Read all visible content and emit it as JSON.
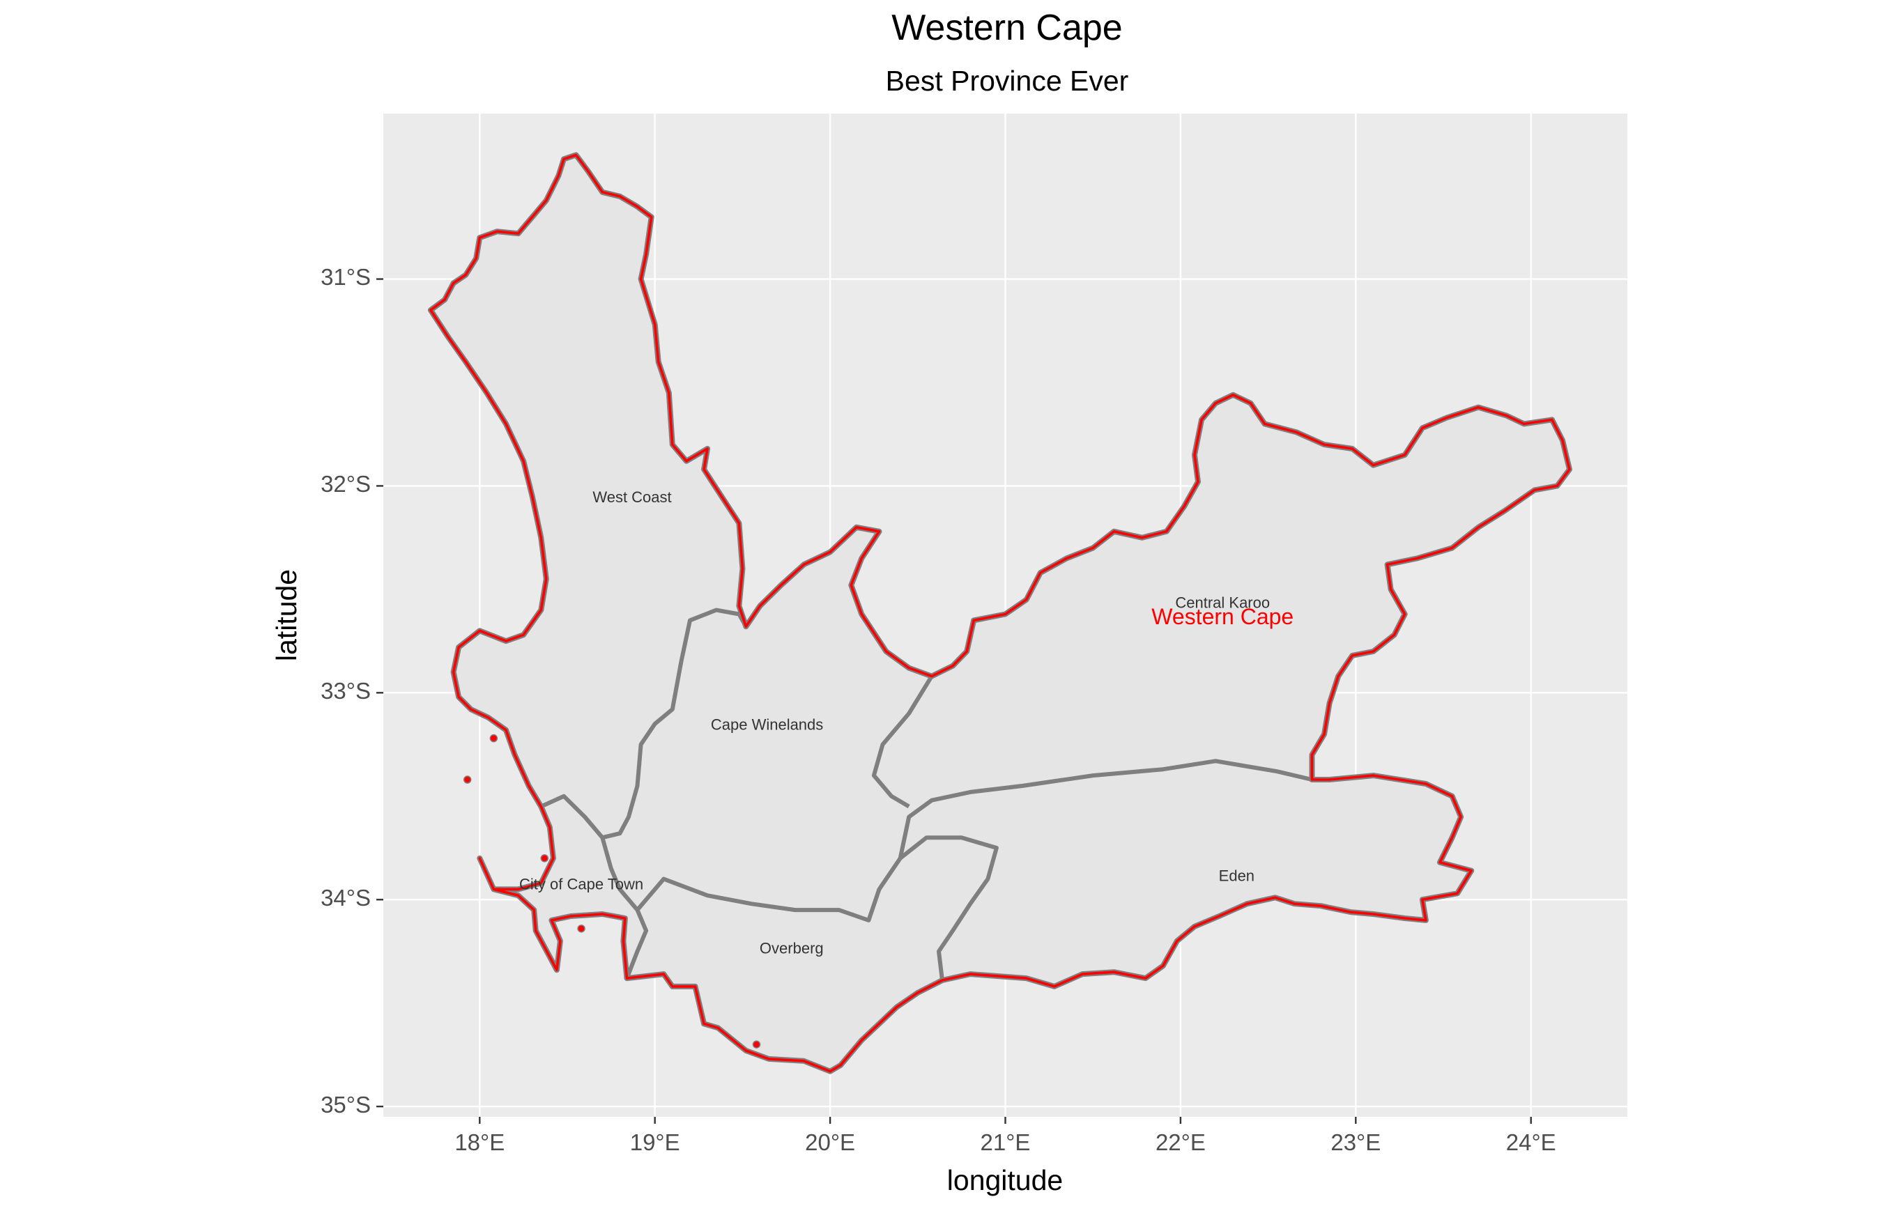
{
  "title": "Western Cape",
  "subtitle": "Best Province Ever",
  "x_axis": {
    "label": "longitude",
    "ticks": [
      {
        "value": 18,
        "label": "18°E"
      },
      {
        "value": 19,
        "label": "19°E"
      },
      {
        "value": 20,
        "label": "20°E"
      },
      {
        "value": 21,
        "label": "21°E"
      },
      {
        "value": 22,
        "label": "22°E"
      },
      {
        "value": 23,
        "label": "23°E"
      },
      {
        "value": 24,
        "label": "24°E"
      }
    ],
    "range": [
      17.45,
      24.55
    ]
  },
  "y_axis": {
    "label": "latitude",
    "ticks": [
      {
        "value": -31,
        "label": "31°S"
      },
      {
        "value": -32,
        "label": "32°S"
      },
      {
        "value": -33,
        "label": "33°S"
      },
      {
        "value": -34,
        "label": "34°S"
      },
      {
        "value": -35,
        "label": "35°S"
      }
    ],
    "range": [
      -35.05,
      -30.2
    ]
  },
  "colors": {
    "panel": "#ebebeb",
    "grid": "#ffffff",
    "fill": "#e5e5e5",
    "district_border": "#7f7f7f",
    "province_border": "#ff0000",
    "province_label": "#ff0000",
    "district_label": "#333333",
    "tick_label": "#4d4d4d",
    "tick_mark": "#333333",
    "title": "#000000"
  },
  "province_label": {
    "text": "Western Cape",
    "lon": 22.24,
    "lat": -32.64
  },
  "districts": [
    {
      "name": "West Coast",
      "lon": 18.87,
      "lat": -32.06
    },
    {
      "name": "Central Karoo",
      "lon": 22.24,
      "lat": -32.57
    },
    {
      "name": "Cape Winelands",
      "lon": 19.64,
      "lat": -33.16
    },
    {
      "name": "City of Cape Town",
      "lon": 18.58,
      "lat": -33.93
    },
    {
      "name": "Eden",
      "lon": 22.32,
      "lat": -33.89
    },
    {
      "name": "Overberg",
      "lon": 19.78,
      "lat": -34.24
    }
  ],
  "outline": [
    [
      18.0,
      -33.8
    ],
    [
      18.08,
      -33.95
    ],
    [
      18.22,
      -33.98
    ],
    [
      18.31,
      -34.05
    ],
    [
      18.32,
      -34.15
    ],
    [
      18.44,
      -34.34
    ],
    [
      18.46,
      -34.2
    ],
    [
      18.41,
      -34.1
    ],
    [
      18.52,
      -34.08
    ],
    [
      18.7,
      -34.07
    ],
    [
      18.83,
      -34.09
    ],
    [
      18.82,
      -34.2
    ],
    [
      18.84,
      -34.38
    ],
    [
      19.05,
      -34.36
    ],
    [
      19.1,
      -34.42
    ],
    [
      19.23,
      -34.42
    ],
    [
      19.28,
      -34.6
    ],
    [
      19.36,
      -34.62
    ],
    [
      19.52,
      -34.73
    ],
    [
      19.65,
      -34.77
    ],
    [
      19.85,
      -34.78
    ],
    [
      20.0,
      -34.83
    ],
    [
      20.06,
      -34.8
    ],
    [
      20.18,
      -34.68
    ],
    [
      20.38,
      -34.52
    ],
    [
      20.5,
      -34.45
    ],
    [
      20.64,
      -34.39
    ],
    [
      20.8,
      -34.36
    ],
    [
      20.96,
      -34.37
    ],
    [
      21.12,
      -34.38
    ],
    [
      21.28,
      -34.42
    ],
    [
      21.44,
      -34.36
    ],
    [
      21.62,
      -34.35
    ],
    [
      21.8,
      -34.38
    ],
    [
      21.9,
      -34.32
    ],
    [
      21.98,
      -34.2
    ],
    [
      22.08,
      -34.13
    ],
    [
      22.22,
      -34.08
    ],
    [
      22.38,
      -34.02
    ],
    [
      22.54,
      -33.99
    ],
    [
      22.65,
      -34.02
    ],
    [
      22.8,
      -34.03
    ],
    [
      22.97,
      -34.06
    ],
    [
      23.1,
      -34.07
    ],
    [
      23.28,
      -34.09
    ],
    [
      23.4,
      -34.1
    ],
    [
      23.38,
      -34.0
    ],
    [
      23.58,
      -33.97
    ],
    [
      23.66,
      -33.86
    ],
    [
      23.48,
      -33.82
    ],
    [
      23.55,
      -33.7
    ],
    [
      23.6,
      -33.6
    ],
    [
      23.55,
      -33.5
    ],
    [
      23.4,
      -33.44
    ],
    [
      23.1,
      -33.4
    ],
    [
      22.85,
      -33.42
    ],
    [
      22.75,
      -33.42
    ],
    [
      22.75,
      -33.3
    ],
    [
      22.82,
      -33.2
    ],
    [
      22.85,
      -33.05
    ],
    [
      22.9,
      -32.92
    ],
    [
      22.98,
      -32.82
    ],
    [
      23.1,
      -32.8
    ],
    [
      23.22,
      -32.72
    ],
    [
      23.28,
      -32.62
    ],
    [
      23.2,
      -32.5
    ],
    [
      23.18,
      -32.38
    ],
    [
      23.35,
      -32.35
    ],
    [
      23.55,
      -32.3
    ],
    [
      23.7,
      -32.2
    ],
    [
      23.85,
      -32.12
    ],
    [
      24.02,
      -32.02
    ],
    [
      24.15,
      -32.0
    ],
    [
      24.22,
      -31.92
    ],
    [
      24.18,
      -31.78
    ],
    [
      24.12,
      -31.68
    ],
    [
      23.96,
      -31.7
    ],
    [
      23.86,
      -31.66
    ],
    [
      23.7,
      -31.62
    ],
    [
      23.52,
      -31.67
    ],
    [
      23.38,
      -31.72
    ],
    [
      23.28,
      -31.85
    ],
    [
      23.1,
      -31.9
    ],
    [
      22.98,
      -31.82
    ],
    [
      22.82,
      -31.8
    ],
    [
      22.66,
      -31.74
    ],
    [
      22.48,
      -31.7
    ],
    [
      22.4,
      -31.6
    ],
    [
      22.3,
      -31.56
    ],
    [
      22.2,
      -31.6
    ],
    [
      22.12,
      -31.68
    ],
    [
      22.08,
      -31.85
    ],
    [
      22.1,
      -31.98
    ],
    [
      22.02,
      -32.1
    ],
    [
      21.92,
      -32.22
    ],
    [
      21.78,
      -32.25
    ],
    [
      21.62,
      -32.22
    ],
    [
      21.5,
      -32.3
    ],
    [
      21.35,
      -32.35
    ],
    [
      21.2,
      -32.42
    ],
    [
      21.12,
      -32.55
    ],
    [
      21.0,
      -32.62
    ],
    [
      20.82,
      -32.65
    ],
    [
      20.78,
      -32.8
    ],
    [
      20.7,
      -32.87
    ],
    [
      20.58,
      -32.92
    ],
    [
      20.45,
      -32.88
    ],
    [
      20.32,
      -32.8
    ],
    [
      20.18,
      -32.62
    ],
    [
      20.12,
      -32.48
    ],
    [
      20.18,
      -32.35
    ],
    [
      20.28,
      -32.22
    ],
    [
      20.15,
      -32.2
    ],
    [
      20.0,
      -32.32
    ],
    [
      19.85,
      -32.38
    ],
    [
      19.72,
      -32.48
    ],
    [
      19.6,
      -32.58
    ],
    [
      19.52,
      -32.68
    ],
    [
      19.48,
      -32.58
    ],
    [
      19.5,
      -32.4
    ],
    [
      19.48,
      -32.18
    ],
    [
      19.38,
      -32.05
    ],
    [
      19.28,
      -31.92
    ],
    [
      19.3,
      -31.82
    ],
    [
      19.18,
      -31.88
    ],
    [
      19.1,
      -31.8
    ],
    [
      19.08,
      -31.55
    ],
    [
      19.02,
      -31.4
    ],
    [
      19.0,
      -31.22
    ],
    [
      18.92,
      -31.0
    ],
    [
      18.95,
      -30.88
    ],
    [
      18.98,
      -30.7
    ],
    [
      18.9,
      -30.65
    ],
    [
      18.8,
      -30.6
    ],
    [
      18.7,
      -30.58
    ],
    [
      18.62,
      -30.48
    ],
    [
      18.55,
      -30.4
    ],
    [
      18.48,
      -30.42
    ],
    [
      18.45,
      -30.5
    ],
    [
      18.38,
      -30.62
    ],
    [
      18.3,
      -30.7
    ],
    [
      18.22,
      -30.78
    ],
    [
      18.1,
      -30.77
    ],
    [
      18.0,
      -30.8
    ],
    [
      17.98,
      -30.9
    ],
    [
      17.92,
      -30.98
    ],
    [
      17.85,
      -31.02
    ],
    [
      17.8,
      -31.1
    ],
    [
      17.72,
      -31.15
    ],
    [
      17.82,
      -31.28
    ],
    [
      17.92,
      -31.4
    ],
    [
      18.04,
      -31.55
    ],
    [
      18.15,
      -31.7
    ],
    [
      18.25,
      -31.88
    ],
    [
      18.3,
      -32.05
    ],
    [
      18.35,
      -32.25
    ],
    [
      18.38,
      -32.45
    ],
    [
      18.35,
      -32.6
    ],
    [
      18.25,
      -32.72
    ],
    [
      18.15,
      -32.75
    ],
    [
      18.0,
      -32.7
    ],
    [
      17.88,
      -32.78
    ],
    [
      17.85,
      -32.9
    ],
    [
      17.88,
      -33.02
    ],
    [
      17.95,
      -33.08
    ],
    [
      18.05,
      -33.12
    ],
    [
      18.15,
      -33.18
    ],
    [
      18.2,
      -33.3
    ],
    [
      18.28,
      -33.45
    ],
    [
      18.35,
      -33.55
    ],
    [
      18.4,
      -33.65
    ],
    [
      18.42,
      -33.8
    ],
    [
      18.35,
      -33.92
    ],
    [
      18.22,
      -33.95
    ],
    [
      18.08,
      -33.95
    ],
    [
      18.0,
      -33.8
    ]
  ],
  "district_borders": [
    [
      [
        18.35,
        -33.55
      ],
      [
        18.48,
        -33.5
      ],
      [
        18.6,
        -33.6
      ],
      [
        18.7,
        -33.7
      ],
      [
        18.8,
        -33.68
      ],
      [
        18.85,
        -33.6
      ],
      [
        18.9,
        -33.45
      ],
      [
        18.92,
        -33.25
      ],
      [
        19.0,
        -33.15
      ],
      [
        19.1,
        -33.08
      ],
      [
        19.15,
        -32.85
      ],
      [
        19.2,
        -32.65
      ],
      [
        19.35,
        -32.6
      ],
      [
        19.48,
        -32.62
      ],
      [
        19.52,
        -32.68
      ]
    ],
    [
      [
        18.7,
        -33.7
      ],
      [
        18.75,
        -33.85
      ],
      [
        18.8,
        -33.95
      ],
      [
        18.9,
        -34.05
      ],
      [
        18.95,
        -34.15
      ],
      [
        18.9,
        -34.25
      ],
      [
        18.84,
        -34.38
      ]
    ],
    [
      [
        18.9,
        -34.05
      ],
      [
        19.05,
        -33.9
      ],
      [
        19.3,
        -33.98
      ],
      [
        19.55,
        -34.02
      ],
      [
        19.8,
        -34.05
      ],
      [
        20.05,
        -34.05
      ],
      [
        20.22,
        -34.1
      ],
      [
        20.28,
        -33.95
      ],
      [
        20.4,
        -33.8
      ],
      [
        20.45,
        -33.6
      ],
      [
        20.58,
        -33.52
      ],
      [
        20.8,
        -33.48
      ],
      [
        21.1,
        -33.45
      ],
      [
        21.5,
        -33.4
      ],
      [
        21.9,
        -33.37
      ],
      [
        22.2,
        -33.33
      ],
      [
        22.55,
        -33.38
      ],
      [
        22.75,
        -33.42
      ]
    ],
    [
      [
        20.58,
        -32.92
      ],
      [
        20.45,
        -33.1
      ],
      [
        20.3,
        -33.25
      ],
      [
        20.25,
        -33.4
      ],
      [
        20.35,
        -33.5
      ],
      [
        20.45,
        -33.55
      ]
    ],
    [
      [
        20.4,
        -33.8
      ],
      [
        20.55,
        -33.7
      ],
      [
        20.75,
        -33.7
      ],
      [
        20.95,
        -33.75
      ],
      [
        20.9,
        -33.9
      ],
      [
        20.8,
        -34.02
      ],
      [
        20.7,
        -34.15
      ],
      [
        20.62,
        -34.25
      ],
      [
        20.64,
        -34.39
      ]
    ]
  ],
  "islands": [
    {
      "lon": 18.08,
      "lat": -33.22
    },
    {
      "lon": 17.93,
      "lat": -33.42
    },
    {
      "lon": 18.37,
      "lat": -33.8
    },
    {
      "lon": 18.58,
      "lat": -34.14
    },
    {
      "lon": 19.58,
      "lat": -34.7
    }
  ]
}
